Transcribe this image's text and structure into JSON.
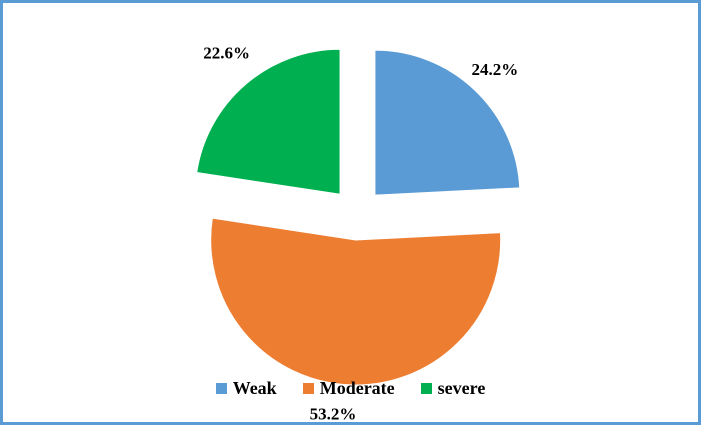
{
  "chart_data": {
    "type": "pie",
    "exploded": true,
    "legend_position": "bottom",
    "start_angle_deg": 0,
    "slices": [
      {
        "label": "Weak",
        "value": 24.2,
        "value_label": "24.2%",
        "color": "#5B9BD5"
      },
      {
        "label": "Moderate",
        "value": 53.2,
        "value_label": "53.2%",
        "color": "#ED7D31"
      },
      {
        "label": "severe",
        "value": 22.6,
        "value_label": "22.6%",
        "color": "#00B050"
      }
    ]
  },
  "frame": {
    "border_color": "#5B9BD5"
  }
}
